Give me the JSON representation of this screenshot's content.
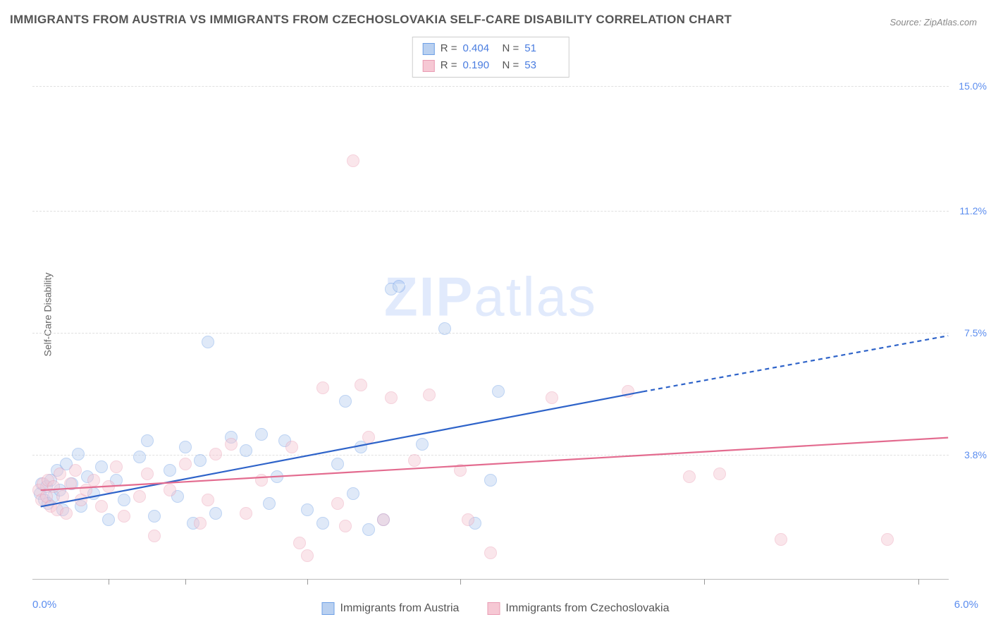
{
  "title": "IMMIGRANTS FROM AUSTRIA VS IMMIGRANTS FROM CZECHOSLOVAKIA SELF-CARE DISABILITY CORRELATION CHART",
  "source": "Source: ZipAtlas.com",
  "ylabel": "Self-Care Disability",
  "watermark_prefix": "ZIP",
  "watermark_suffix": "atlas",
  "chart": {
    "type": "scatter",
    "background_color": "#ffffff",
    "grid_color": "#e0e0e0",
    "grid_dash": "4,4",
    "axis_color": "#bbbbbb",
    "xlim": [
      0.0,
      6.0
    ],
    "ylim": [
      0.0,
      16.5
    ],
    "x_ticks_pct": [
      0.5,
      1.0,
      1.8,
      2.8,
      4.4,
      5.8
    ],
    "x_min_label": "0.0%",
    "x_max_label": "6.0%",
    "y_gridlines": [
      {
        "value": 3.8,
        "label": "3.8%"
      },
      {
        "value": 7.5,
        "label": "7.5%"
      },
      {
        "value": 11.2,
        "label": "11.2%"
      },
      {
        "value": 15.0,
        "label": "15.0%"
      }
    ],
    "label_color": "#5b8def",
    "label_fontsize": 14,
    "title_fontsize": 17,
    "title_color": "#555555",
    "marker_radius": 9,
    "marker_opacity": 0.45,
    "marker_border_width": 1.5
  },
  "series": [
    {
      "name": "Immigrants from Austria",
      "key": "austria",
      "fill": "#b9d0f0",
      "stroke": "#6fa0e6",
      "line_stroke": "#2e63c9",
      "line_width": 2.2,
      "R": "0.404",
      "N": "51",
      "trend": {
        "x1": 0.05,
        "y1": 2.2,
        "x2": 4.0,
        "y2": 5.7,
        "dash_x2": 6.0,
        "dash_y2": 7.4
      },
      "points": [
        [
          0.05,
          2.6
        ],
        [
          0.06,
          2.9
        ],
        [
          0.08,
          2.4
        ],
        [
          0.09,
          2.8
        ],
        [
          0.1,
          2.3
        ],
        [
          0.12,
          3.0
        ],
        [
          0.14,
          2.5
        ],
        [
          0.16,
          3.3
        ],
        [
          0.18,
          2.7
        ],
        [
          0.2,
          2.1
        ],
        [
          0.22,
          3.5
        ],
        [
          0.26,
          2.9
        ],
        [
          0.3,
          3.8
        ],
        [
          0.32,
          2.2
        ],
        [
          0.36,
          3.1
        ],
        [
          0.4,
          2.6
        ],
        [
          0.45,
          3.4
        ],
        [
          0.5,
          1.8
        ],
        [
          0.55,
          3.0
        ],
        [
          0.6,
          2.4
        ],
        [
          0.7,
          3.7
        ],
        [
          0.75,
          4.2
        ],
        [
          0.8,
          1.9
        ],
        [
          0.9,
          3.3
        ],
        [
          0.95,
          2.5
        ],
        [
          1.0,
          4.0
        ],
        [
          1.05,
          1.7
        ],
        [
          1.1,
          3.6
        ],
        [
          1.15,
          7.2
        ],
        [
          1.2,
          2.0
        ],
        [
          1.3,
          4.3
        ],
        [
          1.4,
          3.9
        ],
        [
          1.5,
          4.4
        ],
        [
          1.55,
          2.3
        ],
        [
          1.6,
          3.1
        ],
        [
          1.65,
          4.2
        ],
        [
          1.8,
          2.1
        ],
        [
          1.9,
          1.7
        ],
        [
          2.0,
          3.5
        ],
        [
          2.05,
          5.4
        ],
        [
          2.1,
          2.6
        ],
        [
          2.15,
          4.0
        ],
        [
          2.2,
          1.5
        ],
        [
          2.3,
          1.8
        ],
        [
          2.35,
          8.8
        ],
        [
          2.4,
          8.9
        ],
        [
          2.55,
          4.1
        ],
        [
          2.7,
          7.6
        ],
        [
          2.9,
          1.7
        ],
        [
          3.0,
          3.0
        ],
        [
          3.05,
          5.7
        ]
      ]
    },
    {
      "name": "Immigrants from Czechoslovakia",
      "key": "czech",
      "fill": "#f6c8d4",
      "stroke": "#ea9cb3",
      "line_stroke": "#e36b8f",
      "line_width": 2.2,
      "R": "0.190",
      "N": "53",
      "trend": {
        "x1": 0.05,
        "y1": 2.7,
        "x2": 6.0,
        "y2": 4.3,
        "dash_x2": null,
        "dash_y2": null
      },
      "points": [
        [
          0.04,
          2.7
        ],
        [
          0.06,
          2.4
        ],
        [
          0.07,
          2.9
        ],
        [
          0.09,
          2.5
        ],
        [
          0.1,
          3.0
        ],
        [
          0.12,
          2.2
        ],
        [
          0.14,
          2.8
        ],
        [
          0.16,
          2.1
        ],
        [
          0.18,
          3.2
        ],
        [
          0.2,
          2.5
        ],
        [
          0.22,
          2.0
        ],
        [
          0.25,
          2.9
        ],
        [
          0.28,
          3.3
        ],
        [
          0.32,
          2.4
        ],
        [
          0.35,
          2.7
        ],
        [
          0.4,
          3.0
        ],
        [
          0.45,
          2.2
        ],
        [
          0.5,
          2.8
        ],
        [
          0.55,
          3.4
        ],
        [
          0.6,
          1.9
        ],
        [
          0.7,
          2.5
        ],
        [
          0.75,
          3.2
        ],
        [
          0.8,
          1.3
        ],
        [
          0.9,
          2.7
        ],
        [
          1.0,
          3.5
        ],
        [
          1.1,
          1.7
        ],
        [
          1.15,
          2.4
        ],
        [
          1.2,
          3.8
        ],
        [
          1.3,
          4.1
        ],
        [
          1.4,
          2.0
        ],
        [
          1.5,
          3.0
        ],
        [
          1.7,
          4.0
        ],
        [
          1.75,
          1.1
        ],
        [
          1.8,
          0.7
        ],
        [
          1.9,
          5.8
        ],
        [
          2.0,
          2.3
        ],
        [
          2.05,
          1.6
        ],
        [
          2.1,
          12.7
        ],
        [
          2.15,
          5.9
        ],
        [
          2.2,
          4.3
        ],
        [
          2.3,
          1.8
        ],
        [
          2.35,
          5.5
        ],
        [
          2.5,
          3.6
        ],
        [
          2.6,
          5.6
        ],
        [
          2.8,
          3.3
        ],
        [
          2.85,
          1.8
        ],
        [
          3.0,
          0.8
        ],
        [
          3.4,
          5.5
        ],
        [
          3.9,
          5.7
        ],
        [
          4.3,
          3.1
        ],
        [
          4.5,
          3.2
        ],
        [
          4.9,
          1.2
        ],
        [
          5.6,
          1.2
        ]
      ]
    }
  ],
  "stats_labels": {
    "R": "R =",
    "N": "N ="
  },
  "legend_position": "bottom-center",
  "stats_box_position": "top-center"
}
